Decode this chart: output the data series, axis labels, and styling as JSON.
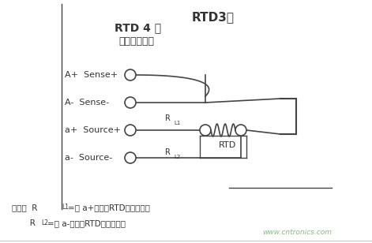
{
  "title": "RTD3线",
  "subtitle": "RTD 4 线",
  "subtitle2": "（精度最高）",
  "bg_color": "#ffffff",
  "labels": [
    "A+  Sense+",
    "A-  Sense-",
    "a+  Source+",
    "a-  Source-"
  ],
  "rl1_label": "R",
  "rl1_sub": "L1",
  "rl2_label": "R",
  "rl2_sub": "L2",
  "rtd_label": "RTD",
  "note_line1": "注意：  R",
  "note_l1_sub": "L1",
  "note_line1b": "=从 a+端子到RTD的导线电阻",
  "note_line2": "       R",
  "note_l2_sub": "L2",
  "note_line2b": "=从 a-端子到RTD的导线电阻",
  "watermark": "www.cntronics.com",
  "line_color": "#444444",
  "text_color": "#333333"
}
